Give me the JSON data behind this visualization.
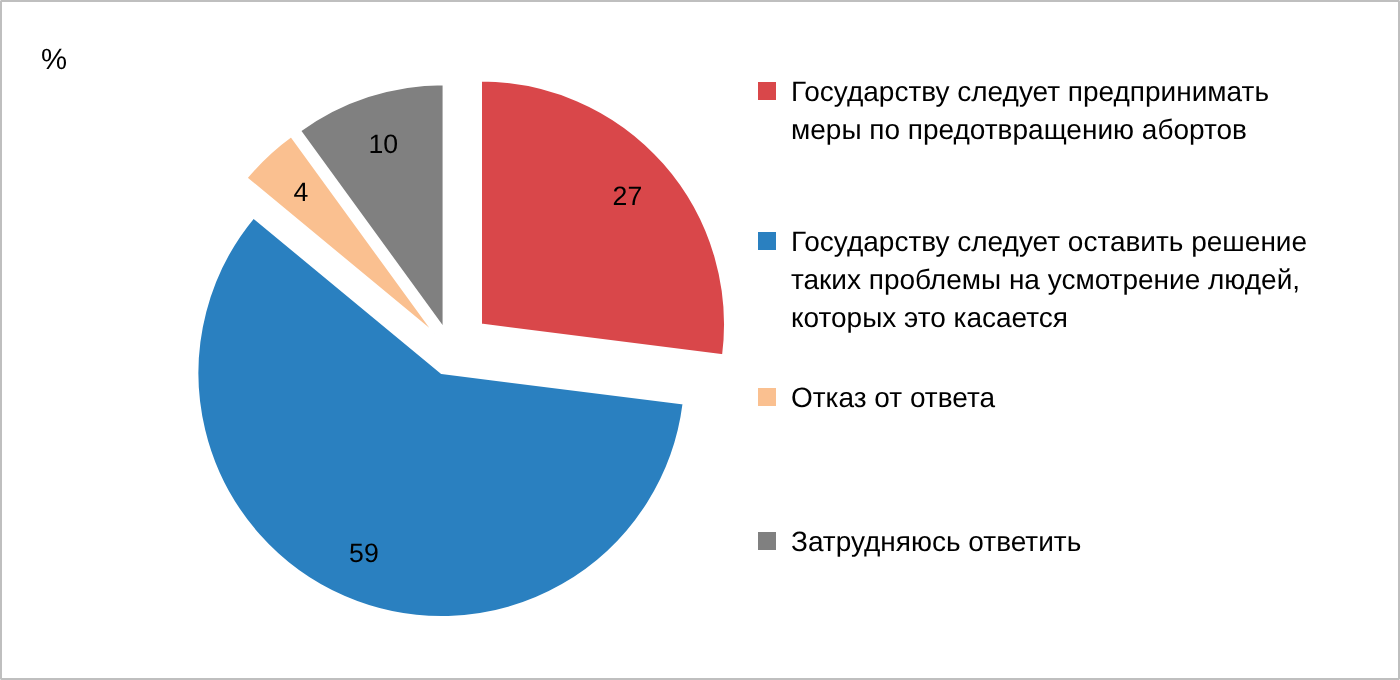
{
  "chart_data": {
    "type": "pie",
    "ylabel": "%",
    "categories": [
      "Государству следует предпринимать меры по предотвращению абортов",
      "Государству следует оставить решение таких проблемы на усмотрение людей, которых это касается",
      "Отказ от ответа",
      "Затрудняюсь ответить"
    ],
    "values": [
      27,
      59,
      4,
      10
    ],
    "colors": [
      "#d9474a",
      "#2a80c0",
      "#fac090",
      "#808080"
    ],
    "data_labels": true,
    "legend": "right"
  }
}
